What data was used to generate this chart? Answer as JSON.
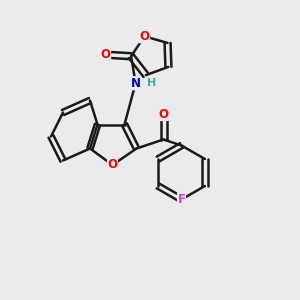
{
  "bg_color": "#ebebeb",
  "bond_color": "#1a1a1a",
  "o_color": "#ff0000",
  "n_color": "#0000cc",
  "f_color": "#cc44cc",
  "h_color": "#44aaaa",
  "figsize": [
    3.0,
    3.0
  ],
  "dpi": 100,
  "lw": 1.8,
  "fs": 8.5,
  "xlim": [
    0,
    10
  ],
  "ylim": [
    0,
    10
  ]
}
